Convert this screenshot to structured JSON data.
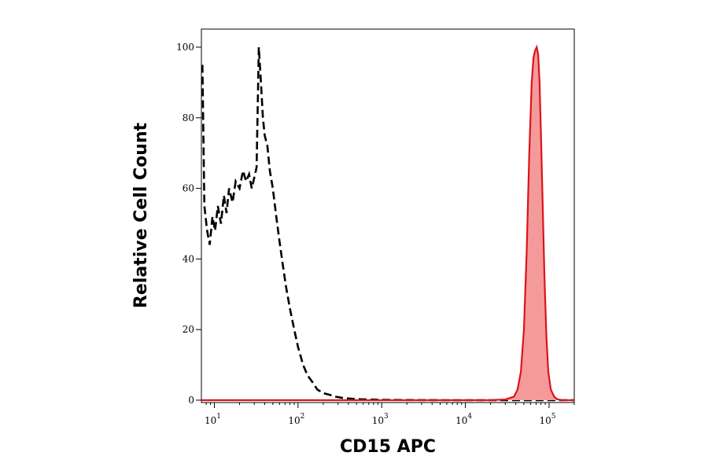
{
  "chart_data": {
    "type": "area",
    "title": "",
    "xlabel": "CD15 APC",
    "ylabel": "Relative Cell Count",
    "x_scale": "log",
    "xlim": [
      7,
      200000
    ],
    "ylim": [
      0,
      105
    ],
    "x_ticks": [
      {
        "value": 10,
        "base": "10",
        "exp": "1"
      },
      {
        "value": 100,
        "base": "10",
        "exp": "2"
      },
      {
        "value": 1000,
        "base": "10",
        "exp": "3"
      },
      {
        "value": 10000,
        "base": "10",
        "exp": "4"
      },
      {
        "value": 100000,
        "base": "10",
        "exp": "5"
      }
    ],
    "y_ticks": [
      0,
      20,
      40,
      60,
      80,
      100
    ],
    "grid": false,
    "legend": "none",
    "series": [
      {
        "style": "dashed",
        "color": "#000000",
        "x": [
          7.2,
          7.6,
          8.2,
          8.8,
          9.5,
          10.2,
          11,
          12,
          13,
          14,
          15,
          16.5,
          18,
          20,
          22,
          24,
          26,
          28,
          30,
          32,
          34,
          36,
          38,
          40,
          43,
          46,
          50,
          55,
          60,
          66,
          72,
          80,
          90,
          100,
          115,
          130,
          150,
          170,
          200,
          240,
          280,
          330,
          400,
          500,
          700,
          1000,
          2000,
          5000,
          10000,
          20000,
          50000,
          100000,
          200000
        ],
        "values": [
          95,
          55,
          48,
          44,
          52,
          48,
          55,
          50,
          58,
          53,
          60,
          56,
          62,
          60,
          65,
          62,
          64,
          60,
          63,
          66,
          100,
          90,
          80,
          75,
          72,
          65,
          60,
          52,
          45,
          38,
          32,
          26,
          20,
          15,
          10,
          7,
          5,
          3,
          2,
          1.5,
          1,
          0.7,
          0.5,
          0.3,
          0.2,
          0.1,
          0.05,
          0,
          0,
          0,
          0,
          0,
          0
        ]
      },
      {
        "style": "filled",
        "color": "#d9151b",
        "fill": "#f59a9a",
        "x": [
          7,
          20000,
          30000,
          38000,
          42000,
          46000,
          50000,
          54000,
          58000,
          62000,
          65000,
          68000,
          71000,
          74000,
          77000,
          80000,
          84000,
          88000,
          93000,
          98000,
          105000,
          115000,
          125000,
          140000,
          200000
        ],
        "values": [
          0,
          0,
          0.2,
          1,
          3,
          8,
          20,
          42,
          70,
          90,
          97,
          99,
          100,
          98,
          90,
          75,
          55,
          35,
          18,
          8,
          3,
          1,
          0.3,
          0,
          0
        ]
      }
    ]
  }
}
